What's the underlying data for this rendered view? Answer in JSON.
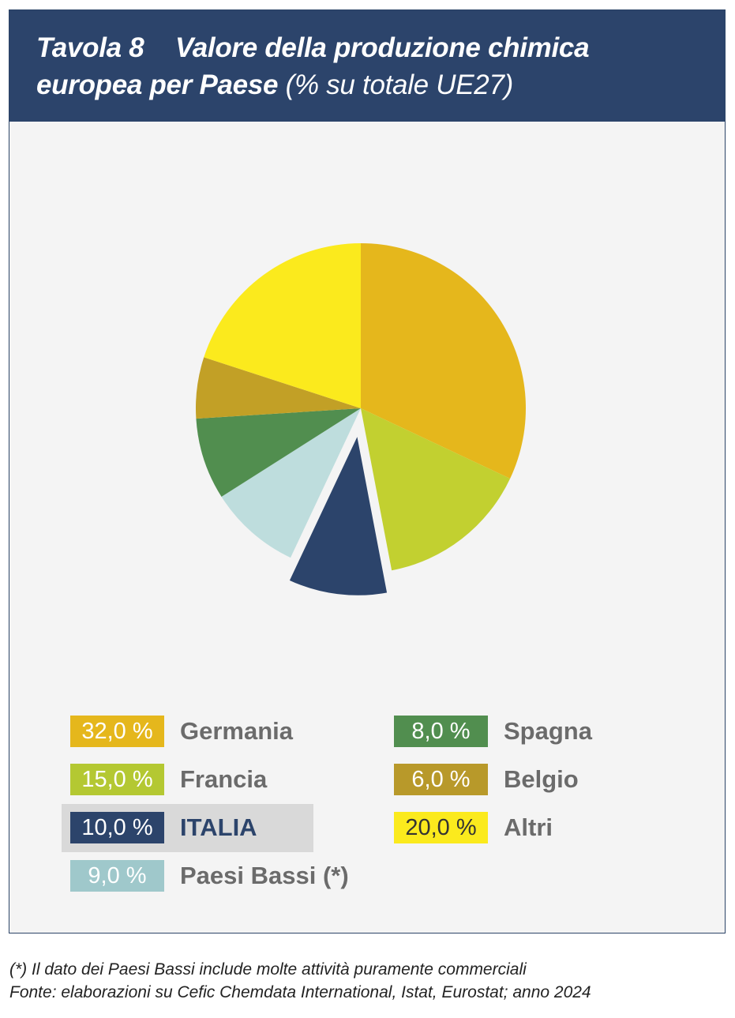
{
  "header": {
    "table_label": "Tavola 8",
    "title_bold_part1": "Valore della produzione chimica",
    "title_bold_part2": "europea per Paese",
    "title_unit": "(% su totale UE27)"
  },
  "chart_data": {
    "type": "pie",
    "title": "Valore della produzione chimica europea per Paese",
    "unit": "% su totale UE27",
    "start_angle_deg": 0,
    "direction": "clockwise",
    "exploded": "ITALIA",
    "slices": [
      {
        "label": "Germania",
        "value": 32.0,
        "value_label": "32,0 %",
        "color": "#e5b71c"
      },
      {
        "label": "Francia",
        "value": 15.0,
        "value_label": "15,0 %",
        "color": "#c2d030"
      },
      {
        "label": "ITALIA",
        "value": 10.0,
        "value_label": "10,0 %",
        "color": "#2c446b"
      },
      {
        "label": "Paesi Bassi (*)",
        "value": 9.0,
        "value_label": "9,0 %",
        "color": "#bedddd"
      },
      {
        "label": "Spagna",
        "value": 8.0,
        "value_label": "8,0 %",
        "color": "#518e4f"
      },
      {
        "label": "Belgio",
        "value": 6.0,
        "value_label": "6,0 %",
        "color": "#c2a026"
      },
      {
        "label": "Altri",
        "value": 20.0,
        "value_label": "20,0 %",
        "color": "#fbea1d"
      }
    ],
    "legend": [
      {
        "value_label": "32,0 %",
        "label": "Germania",
        "color": "#e5b71c",
        "text_color": "#ffffff"
      },
      {
        "value_label": "15,0 %",
        "label": "Francia",
        "color": "#b4c832",
        "text_color": "#ffffff"
      },
      {
        "value_label": "10,0 %",
        "label": "ITALIA",
        "color": "#2c446b",
        "text_color": "#ffffff",
        "highlight": true
      },
      {
        "value_label": "9,0 %",
        "label": "Paesi Bassi (*)",
        "color": "#9fc8cb",
        "text_color": "#ffffff"
      },
      {
        "value_label": "8,0 %",
        "label": "Spagna",
        "color": "#518e4f",
        "text_color": "#ffffff"
      },
      {
        "value_label": "6,0 %",
        "label": "Belgio",
        "color": "#b8992a",
        "text_color": "#ffffff"
      },
      {
        "value_label": "20,0 %",
        "label": "Altri",
        "color": "#fbea1d",
        "text_color": "#333333"
      }
    ]
  },
  "footnotes": {
    "note": "(*) Il dato dei Paesi Bassi include molte attività puramente commerciali",
    "source": "Fonte: elaborazioni su Cefic Chemdata International, Istat, Eurostat; anno 2024"
  }
}
